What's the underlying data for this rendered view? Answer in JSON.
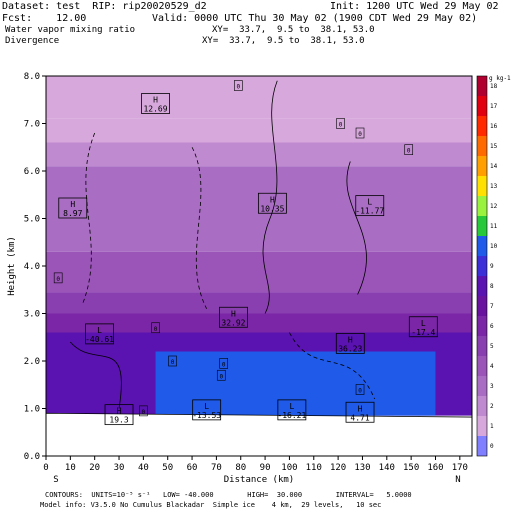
{
  "header": {
    "dataset": "Dataset: test  RIP: rip20020529_d2",
    "init": "Init: 1200 UTC Wed 29 May 02",
    "fcst": "Fcst:    12.00",
    "valid": "Valid: 0000 UTC Thu 30 May 02 (1900 CDT Wed 29 May 02)",
    "field1": "Water vapor mixing ratio",
    "xy1": "XY=  33.7,  9.5 to  38.1, 53.0",
    "field2": "Divergence",
    "xy2": "XY=  33.7,  9.5 to  38.1, 53.0"
  },
  "footer": {
    "line1": "CONTOURS:  UNITS=10⁻⁵ s⁻¹   LOW= -40.000        HIGH=  30.000        INTERVAL=   5.0000",
    "line2": "Model info: V3.5.0 No Cumulus Blackadar  Simple ice    4 km,  29 levels,   10 sec"
  },
  "chart_data": {
    "type": "heatmap",
    "title": "Water vapor mixing ratio / Divergence",
    "xlabel": "Distance (km)",
    "ylabel": "Height (km)",
    "xlim": [
      0,
      175
    ],
    "ylim": [
      0,
      8.0
    ],
    "xticks": [
      "0",
      "10",
      "20",
      "30",
      "40",
      "50",
      "60",
      "70",
      "80",
      "90",
      "100",
      "110",
      "120",
      "130",
      "140",
      "150",
      "160",
      "170"
    ],
    "yticks": [
      "0.0",
      "1.0",
      "2.0",
      "3.0",
      "4.0",
      "5.0",
      "6.0",
      "7.0",
      "8.0"
    ],
    "x_end_labels": {
      "left": "S",
      "right": "N"
    },
    "colorbar": {
      "unit": "g kg-1",
      "levels": [
        "0",
        "1",
        "2",
        "3",
        "4",
        "5",
        "6",
        "7",
        "8",
        "9",
        "10",
        "11",
        "12",
        "13",
        "14",
        "15",
        "16",
        "17",
        "18"
      ],
      "colors": [
        "#7f7fff",
        "#d7a8dc",
        "#c08ad0",
        "#a96ec3",
        "#9b54b8",
        "#8a3fb0",
        "#7a26a6",
        "#6a12a0",
        "#5a12b0",
        "#3d2fd8",
        "#1f5ae8",
        "#27c83a",
        "#9af23f",
        "#ffe000",
        "#ffa000",
        "#ff6a00",
        "#ff2a00",
        "#e00010",
        "#b00030"
      ]
    },
    "bands": [
      {
        "top": 8.0,
        "bottom": 7.1,
        "level": "1"
      },
      {
        "top": 7.1,
        "bottom": 6.6,
        "level": "1"
      },
      {
        "top": 6.6,
        "bottom": 6.1,
        "level": "2"
      },
      {
        "top": 6.1,
        "bottom": 4.3,
        "level": "3"
      },
      {
        "top": 4.3,
        "bottom": 3.45,
        "level": "4"
      },
      {
        "top": 3.45,
        "bottom": 3.0,
        "level": "5"
      },
      {
        "top": 3.0,
        "bottom": 2.6,
        "level": "6"
      },
      {
        "top": 2.6,
        "bottom": 0.85,
        "level": "8"
      }
    ],
    "moist_region": {
      "x_from": 45,
      "x_to": 160,
      "top": 2.2,
      "bottom": 0.85,
      "level": "10"
    },
    "annotations": [
      {
        "kind": "H",
        "value": "12.69",
        "x": 45,
        "y": 7.4
      },
      {
        "kind": "H",
        "value": "8.97",
        "x": 11,
        "y": 5.2
      },
      {
        "kind": "H",
        "value": "10.35",
        "x": 93,
        "y": 5.3
      },
      {
        "kind": "L",
        "value": "-11.77",
        "x": 133,
        "y": 5.25
      },
      {
        "kind": "L",
        "value": "-40.61",
        "x": 22,
        "y": 2.55
      },
      {
        "kind": "H",
        "value": "32.92",
        "x": 77,
        "y": 2.9
      },
      {
        "kind": "H",
        "value": "36.23",
        "x": 125,
        "y": 2.35
      },
      {
        "kind": "L",
        "value": "-17.4",
        "x": 155,
        "y": 2.7
      },
      {
        "kind": "H",
        "value": "19.3",
        "x": 30,
        "y": 0.85
      },
      {
        "kind": "L",
        "value": "-13.53",
        "x": 66,
        "y": 0.95
      },
      {
        "kind": "L",
        "value": "-16.21",
        "x": 101,
        "y": 0.95
      },
      {
        "kind": "H",
        "value": "4.71",
        "x": 129,
        "y": 0.9
      }
    ],
    "zero_labels": [
      {
        "x": 79,
        "y": 7.8
      },
      {
        "x": 121,
        "y": 7.0
      },
      {
        "x": 129,
        "y": 6.8
      },
      {
        "x": 149,
        "y": 6.45
      },
      {
        "x": 5,
        "y": 3.75
      },
      {
        "x": 45,
        "y": 2.7
      },
      {
        "x": 52,
        "y": 2.0
      },
      {
        "x": 73,
        "y": 1.95
      },
      {
        "x": 72,
        "y": 1.7
      },
      {
        "x": 129,
        "y": 1.4
      },
      {
        "x": 40,
        "y": 0.95
      }
    ]
  }
}
